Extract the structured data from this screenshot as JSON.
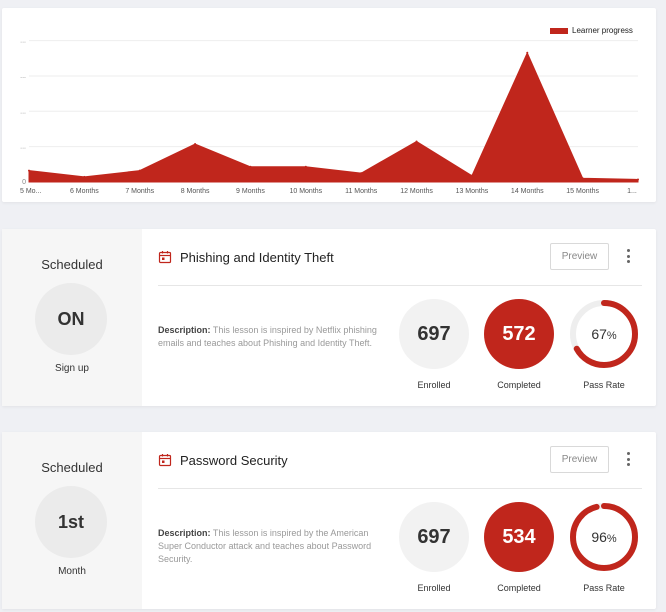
{
  "chart_data": {
    "type": "area",
    "categories": [
      "5 Mo...",
      "6 Months",
      "7 Months",
      "8 Months",
      "9 Months",
      "10 Months",
      "11 Months",
      "12 Months",
      "13 Months",
      "14 Months",
      "15 Months",
      "1..."
    ],
    "series": [
      {
        "name": "Learner progress",
        "values": [
          0.9,
          0.4,
          0.9,
          3.0,
          1.2,
          1.2,
          0.7,
          3.2,
          0.5,
          10.2,
          0.3,
          0.2
        ]
      }
    ],
    "y_tick_labels": [
      "0",
      "...",
      "...",
      "...",
      "..."
    ],
    "ylim": [
      0,
      12
    ],
    "grid": true,
    "legend_position": "top-right",
    "color": "#c0261c"
  },
  "lessons": [
    {
      "schedule_title": "Scheduled",
      "schedule_value": "ON",
      "schedule_sub": "Sign up",
      "title": "Phishing and Identity Theft",
      "preview_label": "Preview",
      "description_label": "Description:",
      "description": "This lesson is inspired by Netflix phishing emails and teaches about Phishing and Identity Theft.",
      "enrolled": "697",
      "enrolled_label": "Enrolled",
      "completed": "572",
      "completed_label": "Completed",
      "pass_rate_value": "67",
      "pass_rate_unit": "%",
      "pass_rate_fraction": 0.67,
      "pass_rate_label": "Pass Rate"
    },
    {
      "schedule_title": "Scheduled",
      "schedule_value": "1st",
      "schedule_sub": "Month",
      "title": "Password Security",
      "preview_label": "Preview",
      "description_label": "Description:",
      "description": "This lesson is inspired by the American Super Conductor attack and teaches about Password Security.",
      "enrolled": "697",
      "enrolled_label": "Enrolled",
      "completed": "534",
      "completed_label": "Completed",
      "pass_rate_value": "96",
      "pass_rate_unit": "%",
      "pass_rate_fraction": 0.96,
      "pass_rate_label": "Pass Rate"
    }
  ]
}
